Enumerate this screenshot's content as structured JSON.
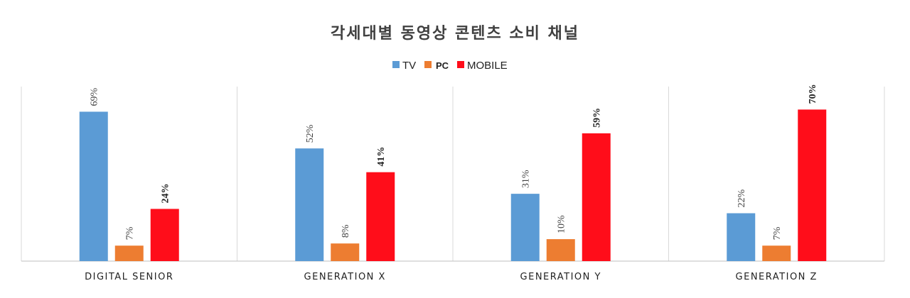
{
  "colors": {
    "tv": "#5b9bd5",
    "pc": "#ed7d31",
    "mobile": "#ff0d1a",
    "title": "#404040",
    "grid": "#d9d9d9"
  },
  "chart_data": {
    "type": "bar",
    "title": "각세대별 동영상 콘텐츠 소비 채널",
    "xlabel": "",
    "ylabel": "",
    "ylim": [
      0,
      80
    ],
    "grid": false,
    "legend_position": "top-center",
    "categories": [
      "DIGITAL SENIOR",
      "GENERATION X",
      "GENERATION Y",
      "GENERATION Z"
    ],
    "series": [
      {
        "name": "TV",
        "values": [
          69,
          52,
          31,
          22
        ],
        "labels": [
          "69%",
          "52%",
          "31%",
          "22%"
        ]
      },
      {
        "name": "PC",
        "values": [
          7,
          8,
          10,
          7
        ],
        "labels": [
          "7%",
          "8%",
          "10%",
          "7%"
        ]
      },
      {
        "name": "MOBILE",
        "values": [
          24,
          41,
          59,
          70
        ],
        "labels": [
          "24%",
          "41%",
          "59%",
          "70%"
        ]
      }
    ]
  }
}
